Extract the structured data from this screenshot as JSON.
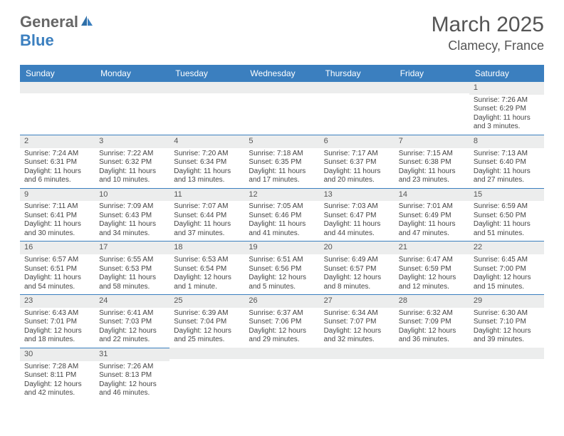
{
  "brand": {
    "part1": "General",
    "part2": "Blue"
  },
  "title": "March 2025",
  "location": "Clamecy, France",
  "colors": {
    "header_bg": "#3b7fbf",
    "header_text": "#ffffff",
    "daynum_bg": "#eceded",
    "border": "#3b7fbf",
    "text": "#444444"
  },
  "dayHeaders": [
    "Sunday",
    "Monday",
    "Tuesday",
    "Wednesday",
    "Thursday",
    "Friday",
    "Saturday"
  ],
  "weeks": [
    [
      {
        "n": "",
        "sr": "",
        "ss": "",
        "dl": ""
      },
      {
        "n": "",
        "sr": "",
        "ss": "",
        "dl": ""
      },
      {
        "n": "",
        "sr": "",
        "ss": "",
        "dl": ""
      },
      {
        "n": "",
        "sr": "",
        "ss": "",
        "dl": ""
      },
      {
        "n": "",
        "sr": "",
        "ss": "",
        "dl": ""
      },
      {
        "n": "",
        "sr": "",
        "ss": "",
        "dl": ""
      },
      {
        "n": "1",
        "sr": "Sunrise: 7:26 AM",
        "ss": "Sunset: 6:29 PM",
        "dl": "Daylight: 11 hours and 3 minutes."
      }
    ],
    [
      {
        "n": "2",
        "sr": "Sunrise: 7:24 AM",
        "ss": "Sunset: 6:31 PM",
        "dl": "Daylight: 11 hours and 6 minutes."
      },
      {
        "n": "3",
        "sr": "Sunrise: 7:22 AM",
        "ss": "Sunset: 6:32 PM",
        "dl": "Daylight: 11 hours and 10 minutes."
      },
      {
        "n": "4",
        "sr": "Sunrise: 7:20 AM",
        "ss": "Sunset: 6:34 PM",
        "dl": "Daylight: 11 hours and 13 minutes."
      },
      {
        "n": "5",
        "sr": "Sunrise: 7:18 AM",
        "ss": "Sunset: 6:35 PM",
        "dl": "Daylight: 11 hours and 17 minutes."
      },
      {
        "n": "6",
        "sr": "Sunrise: 7:17 AM",
        "ss": "Sunset: 6:37 PM",
        "dl": "Daylight: 11 hours and 20 minutes."
      },
      {
        "n": "7",
        "sr": "Sunrise: 7:15 AM",
        "ss": "Sunset: 6:38 PM",
        "dl": "Daylight: 11 hours and 23 minutes."
      },
      {
        "n": "8",
        "sr": "Sunrise: 7:13 AM",
        "ss": "Sunset: 6:40 PM",
        "dl": "Daylight: 11 hours and 27 minutes."
      }
    ],
    [
      {
        "n": "9",
        "sr": "Sunrise: 7:11 AM",
        "ss": "Sunset: 6:41 PM",
        "dl": "Daylight: 11 hours and 30 minutes."
      },
      {
        "n": "10",
        "sr": "Sunrise: 7:09 AM",
        "ss": "Sunset: 6:43 PM",
        "dl": "Daylight: 11 hours and 34 minutes."
      },
      {
        "n": "11",
        "sr": "Sunrise: 7:07 AM",
        "ss": "Sunset: 6:44 PM",
        "dl": "Daylight: 11 hours and 37 minutes."
      },
      {
        "n": "12",
        "sr": "Sunrise: 7:05 AM",
        "ss": "Sunset: 6:46 PM",
        "dl": "Daylight: 11 hours and 41 minutes."
      },
      {
        "n": "13",
        "sr": "Sunrise: 7:03 AM",
        "ss": "Sunset: 6:47 PM",
        "dl": "Daylight: 11 hours and 44 minutes."
      },
      {
        "n": "14",
        "sr": "Sunrise: 7:01 AM",
        "ss": "Sunset: 6:49 PM",
        "dl": "Daylight: 11 hours and 47 minutes."
      },
      {
        "n": "15",
        "sr": "Sunrise: 6:59 AM",
        "ss": "Sunset: 6:50 PM",
        "dl": "Daylight: 11 hours and 51 minutes."
      }
    ],
    [
      {
        "n": "16",
        "sr": "Sunrise: 6:57 AM",
        "ss": "Sunset: 6:51 PM",
        "dl": "Daylight: 11 hours and 54 minutes."
      },
      {
        "n": "17",
        "sr": "Sunrise: 6:55 AM",
        "ss": "Sunset: 6:53 PM",
        "dl": "Daylight: 11 hours and 58 minutes."
      },
      {
        "n": "18",
        "sr": "Sunrise: 6:53 AM",
        "ss": "Sunset: 6:54 PM",
        "dl": "Daylight: 12 hours and 1 minute."
      },
      {
        "n": "19",
        "sr": "Sunrise: 6:51 AM",
        "ss": "Sunset: 6:56 PM",
        "dl": "Daylight: 12 hours and 5 minutes."
      },
      {
        "n": "20",
        "sr": "Sunrise: 6:49 AM",
        "ss": "Sunset: 6:57 PM",
        "dl": "Daylight: 12 hours and 8 minutes."
      },
      {
        "n": "21",
        "sr": "Sunrise: 6:47 AM",
        "ss": "Sunset: 6:59 PM",
        "dl": "Daylight: 12 hours and 12 minutes."
      },
      {
        "n": "22",
        "sr": "Sunrise: 6:45 AM",
        "ss": "Sunset: 7:00 PM",
        "dl": "Daylight: 12 hours and 15 minutes."
      }
    ],
    [
      {
        "n": "23",
        "sr": "Sunrise: 6:43 AM",
        "ss": "Sunset: 7:01 PM",
        "dl": "Daylight: 12 hours and 18 minutes."
      },
      {
        "n": "24",
        "sr": "Sunrise: 6:41 AM",
        "ss": "Sunset: 7:03 PM",
        "dl": "Daylight: 12 hours and 22 minutes."
      },
      {
        "n": "25",
        "sr": "Sunrise: 6:39 AM",
        "ss": "Sunset: 7:04 PM",
        "dl": "Daylight: 12 hours and 25 minutes."
      },
      {
        "n": "26",
        "sr": "Sunrise: 6:37 AM",
        "ss": "Sunset: 7:06 PM",
        "dl": "Daylight: 12 hours and 29 minutes."
      },
      {
        "n": "27",
        "sr": "Sunrise: 6:34 AM",
        "ss": "Sunset: 7:07 PM",
        "dl": "Daylight: 12 hours and 32 minutes."
      },
      {
        "n": "28",
        "sr": "Sunrise: 6:32 AM",
        "ss": "Sunset: 7:09 PM",
        "dl": "Daylight: 12 hours and 36 minutes."
      },
      {
        "n": "29",
        "sr": "Sunrise: 6:30 AM",
        "ss": "Sunset: 7:10 PM",
        "dl": "Daylight: 12 hours and 39 minutes."
      }
    ],
    [
      {
        "n": "30",
        "sr": "Sunrise: 7:28 AM",
        "ss": "Sunset: 8:11 PM",
        "dl": "Daylight: 12 hours and 42 minutes."
      },
      {
        "n": "31",
        "sr": "Sunrise: 7:26 AM",
        "ss": "Sunset: 8:13 PM",
        "dl": "Daylight: 12 hours and 46 minutes."
      },
      {
        "n": "",
        "sr": "",
        "ss": "",
        "dl": ""
      },
      {
        "n": "",
        "sr": "",
        "ss": "",
        "dl": ""
      },
      {
        "n": "",
        "sr": "",
        "ss": "",
        "dl": ""
      },
      {
        "n": "",
        "sr": "",
        "ss": "",
        "dl": ""
      },
      {
        "n": "",
        "sr": "",
        "ss": "",
        "dl": ""
      }
    ]
  ]
}
